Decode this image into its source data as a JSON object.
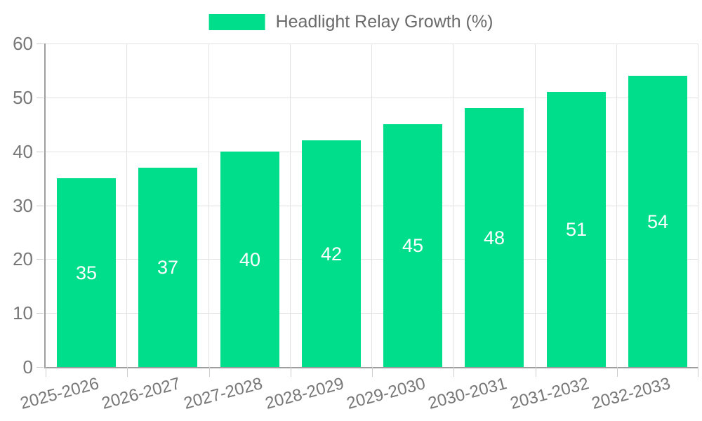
{
  "legend": {
    "label": "Headlight Relay Growth (%)"
  },
  "chart_data": {
    "type": "bar",
    "title": "Headlight Relay Growth (%)",
    "categories": [
      "2025-2026",
      "2026-2027",
      "2027-2028",
      "2028-2029",
      "2029-2030",
      "2030-2031",
      "2031-2032",
      "2032-2033"
    ],
    "values": [
      35,
      37,
      40,
      42,
      45,
      48,
      51,
      54
    ],
    "xlabel": "",
    "ylabel": "",
    "ylim": [
      0,
      60
    ],
    "yticks": [
      0,
      10,
      20,
      30,
      40,
      50,
      60
    ],
    "grid": true,
    "legend_position": "top-center",
    "value_labels": "inside-middle",
    "colors": {
      "bar": "#00DE8C",
      "value_label": "#ffffff",
      "axis": "#9e9e9e",
      "gridline": "#e2e2e2",
      "tick_label": "#777777",
      "legend_text": "#6a6a6a",
      "background": "#ffffff"
    }
  }
}
